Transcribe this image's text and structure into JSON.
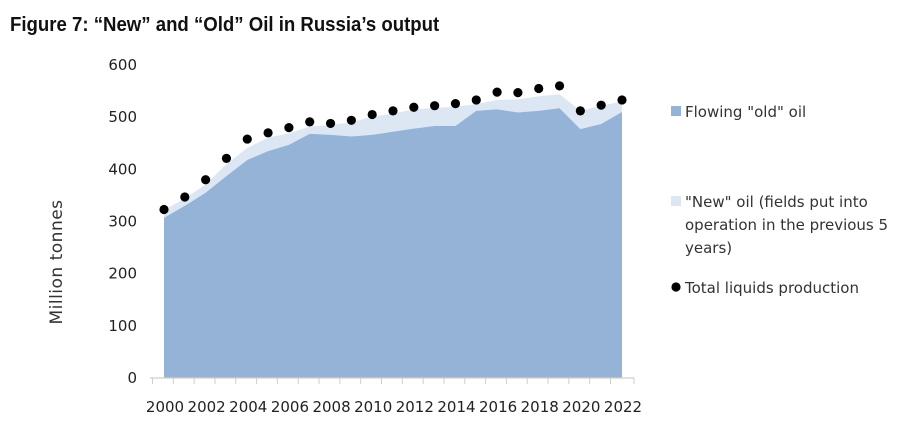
{
  "title": "Figure 7: “New” and “Old” Oil in Russia’s output",
  "chart_data": {
    "type": "area",
    "ylabel": "Million tonnes",
    "xlabel": "",
    "ylim": [
      0,
      600
    ],
    "yticks": [
      0,
      100,
      200,
      300,
      400,
      500,
      600
    ],
    "x": [
      2000,
      2001,
      2002,
      2003,
      2004,
      2005,
      2006,
      2007,
      2008,
      2009,
      2010,
      2011,
      2012,
      2013,
      2014,
      2015,
      2016,
      2017,
      2018,
      2019,
      2020,
      2021,
      2022
    ],
    "xtick_labels": [
      "2000",
      "2002",
      "2004",
      "2006",
      "2008",
      "2010",
      "2012",
      "2014",
      "2016",
      "2018",
      "2020",
      "2022"
    ],
    "series": [
      {
        "name": "Flowing \"old\" oil",
        "kind": "area",
        "color": "#94b3d7",
        "values": [
          307,
          330,
          355,
          387,
          418,
          435,
          447,
          468,
          466,
          463,
          466,
          472,
          478,
          483,
          483,
          512,
          515,
          509,
          512,
          517,
          477,
          487,
          510
        ]
      },
      {
        "name": "\"New\" oil (fields put into operation in the previous 5 years)",
        "kind": "stacked-area",
        "color": "#dde7f3",
        "values": [
          15,
          14,
          16,
          23,
          23,
          26,
          22,
          14,
          19,
          27,
          35,
          35,
          37,
          35,
          37,
          13,
          18,
          25,
          28,
          27,
          35,
          35,
          20
        ]
      },
      {
        "name": "Total liquids production",
        "kind": "scatter",
        "color": "#000000",
        "values": [
          323,
          347,
          380,
          421,
          458,
          470,
          480,
          491,
          488,
          494,
          505,
          512,
          519,
          522,
          526,
          533,
          548,
          547,
          555,
          560,
          512,
          523,
          533
        ]
      }
    ],
    "legend": {
      "position": "right",
      "entries": [
        {
          "lines": [
            "Flowing \"old\" oil"
          ],
          "marker": "square",
          "color": "#94b3d7"
        },
        {
          "lines": [
            "\"New\" oil (fields put into",
            "operation in the previous 5",
            "years)"
          ],
          "marker": "square",
          "color": "#dde7f3"
        },
        {
          "lines": [
            "Total liquids production"
          ],
          "marker": "dot",
          "color": "#000000"
        }
      ]
    }
  }
}
